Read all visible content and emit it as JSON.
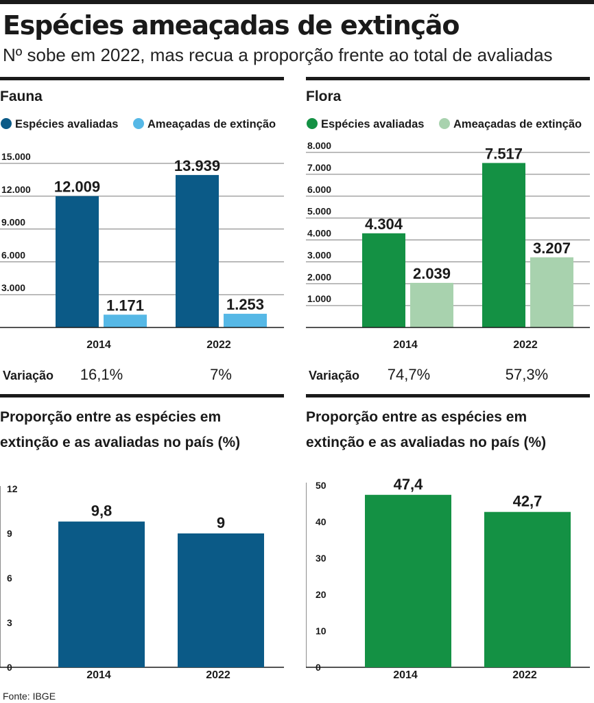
{
  "header": {
    "title": "Espécies ameaçadas de extinção",
    "subtitle": "Nº sobe em 2022, mas recua a proporção frente ao total de avaliadas"
  },
  "source": "Fonte: IBGE",
  "colors": {
    "fauna_avaliadas": "#0b5a87",
    "fauna_ameacadas": "#56b8e6",
    "flora_avaliadas": "#149144",
    "flora_ameacadas": "#a8d2ae",
    "fauna_proporcao": "#0b5a87",
    "flora_proporcao": "#149144"
  },
  "chart_data": [
    {
      "id": "fauna",
      "type": "bar",
      "title": "Fauna",
      "categories": [
        "2014",
        "2022"
      ],
      "series": [
        {
          "name": "Espécies avaliadas",
          "values": [
            12009,
            13939
          ],
          "labels": [
            "12.009",
            "13.939"
          ]
        },
        {
          "name": "Ameaçadas de extinção",
          "values": [
            1171,
            1253
          ],
          "labels": [
            "1.171",
            "1.253"
          ]
        }
      ],
      "yticks": [
        "3.000",
        "6.000",
        "9.000",
        "12.000",
        "15.000"
      ],
      "ytick_values": [
        3000,
        6000,
        9000,
        12000,
        15000
      ],
      "ylim": [
        0,
        15000
      ],
      "variation_label": "Variação",
      "variation": [
        "16,1%",
        "7%"
      ]
    },
    {
      "id": "flora",
      "type": "bar",
      "title": "Flora",
      "categories": [
        "2014",
        "2022"
      ],
      "series": [
        {
          "name": "Espécies avaliadas",
          "values": [
            4304,
            7517
          ],
          "labels": [
            "4.304",
            "7.517"
          ]
        },
        {
          "name": "Ameaçadas de extinção",
          "values": [
            2039,
            3207
          ],
          "labels": [
            "2.039",
            "3.207"
          ]
        }
      ],
      "yticks": [
        "1.000",
        "2.000",
        "3.000",
        "4.000",
        "5.000",
        "6.000",
        "7.000",
        "8.000"
      ],
      "ytick_values": [
        1000,
        2000,
        3000,
        4000,
        5000,
        6000,
        7000,
        8000
      ],
      "ylim": [
        0,
        8000
      ],
      "variation_label": "Variação",
      "variation": [
        "74,7%",
        "57,3%"
      ]
    },
    {
      "id": "fauna_proporcao",
      "type": "bar",
      "title": "Proporção entre as espécies em extinção e as avaliadas no país (%)",
      "categories": [
        "2014",
        "2022"
      ],
      "values": [
        9.8,
        9
      ],
      "labels": [
        "9,8",
        "9"
      ],
      "yticks": [
        "0",
        "3",
        "6",
        "9",
        "12"
      ],
      "ytick_values": [
        0,
        3,
        6,
        9,
        12
      ],
      "ylim": [
        0,
        12
      ]
    },
    {
      "id": "flora_proporcao",
      "type": "bar",
      "title": "Proporção entre as espécies em extinção e as avaliadas no país (%)",
      "categories": [
        "2014",
        "2022"
      ],
      "values": [
        47.4,
        42.7
      ],
      "labels": [
        "47,4",
        "42,7"
      ],
      "yticks": [
        "0",
        "10",
        "20",
        "30",
        "40",
        "50"
      ],
      "ytick_values": [
        0,
        10,
        20,
        30,
        40,
        50
      ],
      "ylim": [
        0,
        50
      ]
    }
  ]
}
